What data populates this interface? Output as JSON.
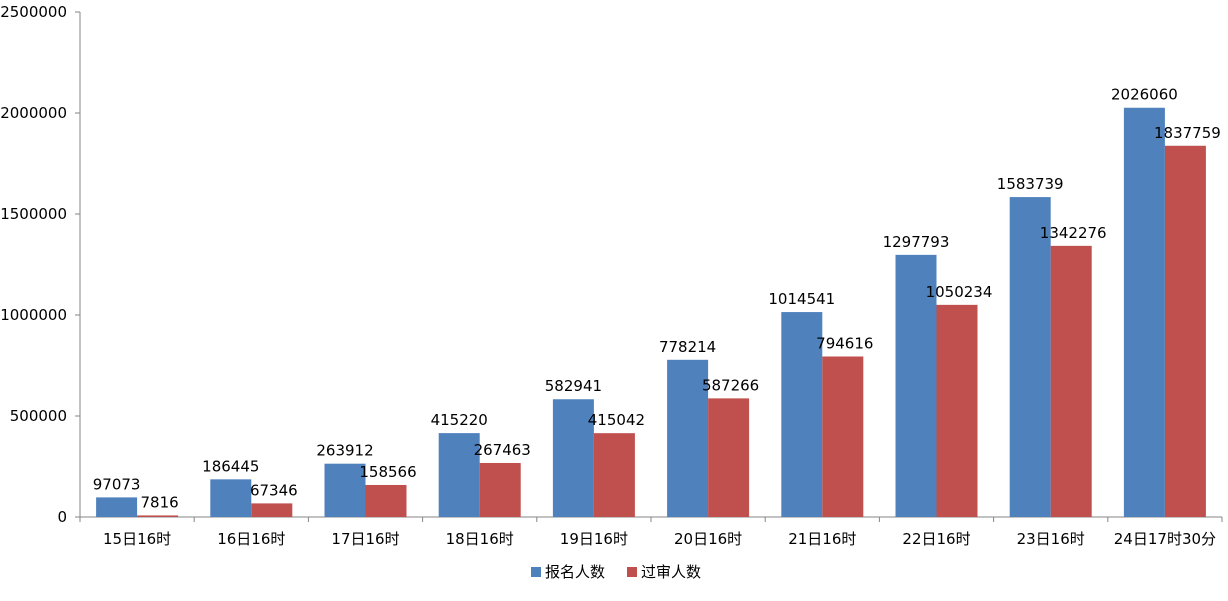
{
  "chart_data": {
    "type": "bar",
    "categories": [
      "15日16时",
      "16日16时",
      "17日16时",
      "18日16时",
      "19日16时",
      "20日16时",
      "21日16时",
      "22日16时",
      "23日16时",
      "24日17时30分"
    ],
    "series": [
      {
        "name": "报名人数",
        "color": "#4F81BD",
        "values": [
          97073,
          186445,
          263912,
          415220,
          582941,
          778214,
          1014541,
          1297793,
          1583739,
          2026060
        ]
      },
      {
        "name": "过审人数",
        "color": "#C0504D",
        "values": [
          7816,
          67346,
          158566,
          267463,
          415042,
          587266,
          794616,
          1050234,
          1342276,
          1837759
        ]
      }
    ],
    "y_ticks": [
      "0",
      "500000",
      "1000000",
      "1500000",
      "2000000",
      "2500000"
    ],
    "ylim": [
      0,
      2500000
    ],
    "grid": false,
    "legend_position": "bottom",
    "data_labels": true
  }
}
